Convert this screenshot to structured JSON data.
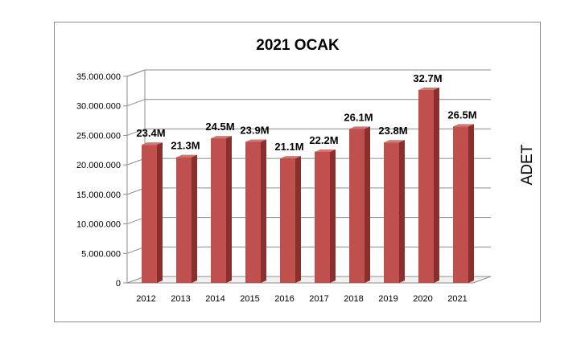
{
  "chart_data": {
    "type": "bar",
    "title": "2021 OCAK",
    "xlabel": "",
    "ylabel": "ADET",
    "categories": [
      "2012",
      "2013",
      "2014",
      "2015",
      "2016",
      "2017",
      "2018",
      "2019",
      "2020",
      "2021"
    ],
    "values": [
      23400000,
      21300000,
      24500000,
      23900000,
      21100000,
      22200000,
      26100000,
      23800000,
      32700000,
      26500000
    ],
    "data_labels": [
      "23.4M",
      "21.3M",
      "24.5M",
      "23.9M",
      "21.1M",
      "22.2M",
      "26.1M",
      "23.8M",
      "32.7M",
      "26.5M"
    ],
    "ylim": [
      0,
      35000000
    ],
    "yticks": [
      "0",
      "5.000.000",
      "10.000.000",
      "15.000.000",
      "20.000.000",
      "25.000.000",
      "30.000.000",
      "35.000.000"
    ],
    "grid": true,
    "legend": "none",
    "colors": {
      "bar_front": "#c0504d",
      "bar_side": "#8b2f2d",
      "bar_top": "#d9736f",
      "grid": "#8c8c8c",
      "text": "#000000"
    }
  }
}
